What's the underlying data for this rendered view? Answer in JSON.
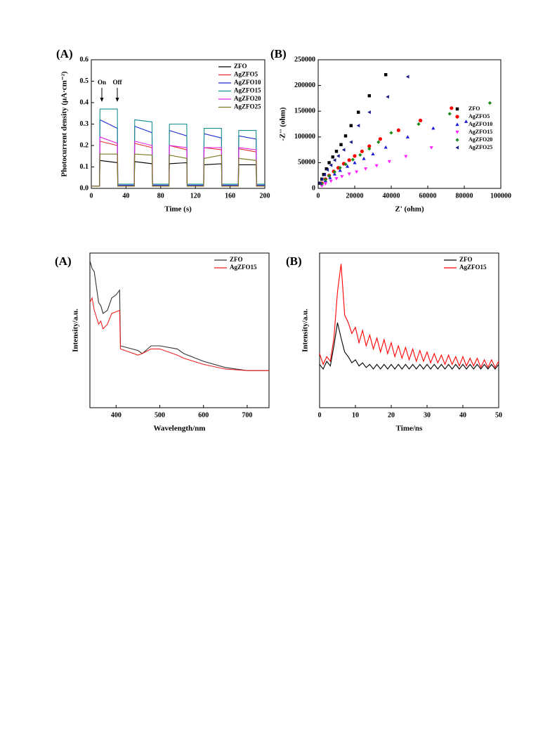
{
  "chart_data": [
    {
      "type": "line",
      "panel_label": "(A)",
      "x_label": "Time (s)",
      "y_label": "Photocurrent density (μA·cm⁻²)",
      "annotations": [
        "On",
        "Off"
      ],
      "xlim": [
        0,
        200
      ],
      "xticks": [
        0,
        40,
        80,
        120,
        160,
        200
      ],
      "ylim": [
        0,
        0.6
      ],
      "yticks": [
        {
          "value": 0,
          "label": "0.0"
        },
        0.1,
        0.2,
        0.3,
        0.4,
        0.5,
        0.6
      ],
      "legend": "upper right",
      "x": [
        0,
        9.5,
        10,
        30,
        30.5,
        49.5,
        50,
        70,
        70.5,
        89.5,
        90,
        110,
        110.5,
        129.5,
        130,
        150,
        150.5,
        169.5,
        170,
        190,
        190.5,
        200
      ],
      "series": [
        {
          "name": "ZFO",
          "color": "#000000",
          "values": [
            0.01,
            0.01,
            0.13,
            0.12,
            0.01,
            0.01,
            0.125,
            0.115,
            0.01,
            0.01,
            0.115,
            0.12,
            0.01,
            0.01,
            0.11,
            0.115,
            0.01,
            0.01,
            0.11,
            0.11,
            0.01,
            0.01
          ]
        },
        {
          "name": "AgZFO5",
          "color": "#e8262b",
          "values": [
            0.01,
            0.01,
            0.22,
            0.2,
            0.01,
            0.01,
            0.21,
            0.19,
            0.01,
            0.01,
            0.2,
            0.18,
            0.01,
            0.01,
            0.19,
            0.18,
            0.01,
            0.01,
            0.185,
            0.17,
            0.01,
            0.01
          ]
        },
        {
          "name": "AgZFO10",
          "color": "#1c2bd6",
          "values": [
            0.01,
            0.01,
            0.32,
            0.28,
            0.015,
            0.015,
            0.29,
            0.26,
            0.015,
            0.015,
            0.27,
            0.245,
            0.015,
            0.015,
            0.255,
            0.235,
            0.015,
            0.015,
            0.245,
            0.23,
            0.015,
            0.015
          ]
        },
        {
          "name": "AgZFO15",
          "color": "#1a8f8f",
          "values": [
            0.01,
            0.01,
            0.37,
            0.37,
            0.02,
            0.02,
            0.32,
            0.31,
            0.02,
            0.02,
            0.3,
            0.3,
            0.02,
            0.02,
            0.28,
            0.28,
            0.02,
            0.02,
            0.27,
            0.27,
            0.02,
            0.02
          ]
        },
        {
          "name": "AgZFO20",
          "color": "#e020e0",
          "values": [
            0.01,
            0.01,
            0.24,
            0.21,
            0.01,
            0.01,
            0.22,
            0.2,
            0.01,
            0.01,
            0.2,
            0.19,
            0.01,
            0.01,
            0.19,
            0.19,
            0.01,
            0.01,
            0.19,
            0.18,
            0.01,
            0.01
          ]
        },
        {
          "name": "AgZFO25",
          "color": "#7a7a1e",
          "values": [
            0.01,
            0.01,
            0.16,
            0.16,
            0.01,
            0.01,
            0.16,
            0.155,
            0.01,
            0.01,
            0.155,
            0.14,
            0.01,
            0.01,
            0.14,
            0.155,
            0.01,
            0.01,
            0.14,
            0.13,
            0.01,
            0.01
          ]
        }
      ]
    },
    {
      "type": "scatter",
      "panel_label": "(B)",
      "x_label": "Z' (ohm)",
      "y_label": "-Z'' (ohm)",
      "xlim": [
        0,
        100000
      ],
      "xticks": [
        0,
        20000,
        40000,
        60000,
        80000,
        100000
      ],
      "ylim": [
        0,
        250000
      ],
      "yticks": [
        0,
        50000,
        100000,
        150000,
        200000,
        250000
      ],
      "legend": "lower right",
      "series": [
        {
          "name": "ZFO",
          "color": "#000000",
          "marker": "square",
          "x": [
            1000,
            2000,
            3000,
            4500,
            6000,
            8000,
            10000,
            12500,
            15000,
            18000,
            22000,
            28000,
            37000
          ],
          "values": [
            10000,
            18000,
            27000,
            38000,
            50000,
            61000,
            72000,
            85000,
            102000,
            122000,
            148000,
            180000,
            221000
          ]
        },
        {
          "name": "AgZFO5",
          "color": "#ff0000",
          "marker": "circle",
          "x": [
            2000,
            4000,
            6000,
            8500,
            11000,
            14000,
            17000,
            20000,
            24000,
            28000,
            34000,
            44000,
            56000,
            73000
          ],
          "values": [
            10000,
            18000,
            25000,
            33000,
            40000,
            48000,
            55000,
            63000,
            72000,
            82000,
            96000,
            113000,
            132000,
            156000
          ]
        },
        {
          "name": "AgZFO10",
          "color": "#1a1ad6",
          "marker": "triangle-up",
          "x": [
            2000,
            4000,
            6500,
            9000,
            12000,
            16000,
            20000,
            25000,
            30000,
            37000,
            49000,
            63000,
            81000
          ],
          "values": [
            8000,
            15000,
            21000,
            28000,
            35000,
            43000,
            50000,
            58000,
            67000,
            80000,
            100000,
            117000,
            130000
          ]
        },
        {
          "name": "AgZFO15",
          "color": "#ff22ff",
          "marker": "triangle-down",
          "x": [
            2000,
            4000,
            7000,
            10000,
            13000,
            17000,
            21000,
            26000,
            32000,
            39000,
            48000,
            62000
          ],
          "values": [
            5000,
            9000,
            14000,
            19000,
            23000,
            28000,
            32000,
            38000,
            44000,
            52000,
            62000,
            79000
          ]
        },
        {
          "name": "AgZFO20",
          "color": "#1a8a1a",
          "marker": "diamond",
          "x": [
            2000,
            4000,
            6000,
            9000,
            12000,
            15000,
            19000,
            23000,
            28000,
            33000,
            40000,
            55000,
            72000,
            94000
          ],
          "values": [
            9000,
            17000,
            24000,
            32000,
            40000,
            47000,
            56000,
            65000,
            77000,
            90000,
            108000,
            125000,
            145000,
            166000
          ]
        },
        {
          "name": "AgZFO25",
          "color": "#1a1a8a",
          "marker": "triangle-left",
          "x": [
            1000,
            2000,
            3500,
            5000,
            7000,
            9000,
            11000,
            14000,
            18000,
            22000,
            28000,
            38000,
            49000
          ],
          "values": [
            10000,
            18000,
            27000,
            36000,
            45000,
            55000,
            63000,
            75000,
            90000,
            122000,
            148000,
            178000,
            217000
          ]
        }
      ]
    },
    {
      "type": "line",
      "panel_label": "(A)",
      "x_label": "Wavelength/nm",
      "y_label": "Intensity/a.u.",
      "xlim": [
        340,
        750
      ],
      "xticks": [
        400,
        500,
        600,
        700
      ],
      "ylim": [
        0,
        1
      ],
      "legend": "upper right",
      "x": [
        340,
        345,
        350,
        360,
        365,
        370,
        380,
        390,
        400,
        408,
        410,
        450,
        460,
        480,
        500,
        540,
        555,
        600,
        650,
        700,
        750
      ],
      "series": [
        {
          "name": "ZFO",
          "color": "#333333",
          "values": [
            0.95,
            0.9,
            0.88,
            0.68,
            0.66,
            0.61,
            0.63,
            0.71,
            0.73,
            0.76,
            0.4,
            0.37,
            0.35,
            0.4,
            0.4,
            0.38,
            0.35,
            0.3,
            0.26,
            0.24,
            0.24
          ]
        },
        {
          "name": "AgZFO15",
          "color": "#ee2222",
          "values": [
            0.68,
            0.71,
            0.63,
            0.54,
            0.56,
            0.51,
            0.54,
            0.61,
            0.62,
            0.63,
            0.38,
            0.34,
            0.35,
            0.38,
            0.38,
            0.34,
            0.32,
            0.28,
            0.25,
            0.24,
            0.24
          ]
        }
      ]
    },
    {
      "type": "line",
      "panel_label": "(B)",
      "x_label": "Time/ns",
      "y_label": "Intensity/a.u.",
      "xlim": [
        0,
        50
      ],
      "xticks": [
        0,
        10,
        20,
        30,
        40,
        50
      ],
      "ylim": [
        0,
        1
      ],
      "legend": "upper right",
      "x": [
        0,
        1,
        2,
        3,
        4,
        5,
        6,
        7,
        8,
        9,
        10,
        11,
        12,
        13,
        14,
        15,
        16,
        17,
        18,
        19,
        20,
        21,
        22,
        23,
        24,
        25,
        26,
        27,
        28,
        29,
        30,
        31,
        32,
        33,
        34,
        35,
        36,
        37,
        38,
        39,
        40,
        41,
        42,
        43,
        44,
        45,
        46,
        47,
        48,
        49,
        50
      ],
      "series": [
        {
          "name": "ZFO",
          "color": "#000000",
          "values": [
            0.28,
            0.25,
            0.3,
            0.27,
            0.4,
            0.55,
            0.45,
            0.36,
            0.33,
            0.29,
            0.31,
            0.27,
            0.29,
            0.26,
            0.28,
            0.25,
            0.28,
            0.25,
            0.28,
            0.25,
            0.28,
            0.25,
            0.28,
            0.25,
            0.28,
            0.25,
            0.28,
            0.25,
            0.28,
            0.25,
            0.28,
            0.25,
            0.28,
            0.25,
            0.28,
            0.25,
            0.28,
            0.25,
            0.28,
            0.25,
            0.28,
            0.25,
            0.28,
            0.25,
            0.28,
            0.25,
            0.28,
            0.25,
            0.28,
            0.25,
            0.28
          ]
        },
        {
          "name": "AgZFO15",
          "color": "#ff0000",
          "values": [
            0.35,
            0.28,
            0.33,
            0.3,
            0.45,
            0.75,
            0.93,
            0.6,
            0.55,
            0.48,
            0.52,
            0.42,
            0.5,
            0.4,
            0.47,
            0.38,
            0.45,
            0.36,
            0.44,
            0.35,
            0.42,
            0.33,
            0.4,
            0.32,
            0.39,
            0.31,
            0.38,
            0.3,
            0.37,
            0.3,
            0.36,
            0.29,
            0.35,
            0.29,
            0.34,
            0.28,
            0.34,
            0.28,
            0.33,
            0.27,
            0.33,
            0.27,
            0.32,
            0.27,
            0.32,
            0.26,
            0.31,
            0.26,
            0.31,
            0.26,
            0.3
          ]
        }
      ]
    }
  ]
}
